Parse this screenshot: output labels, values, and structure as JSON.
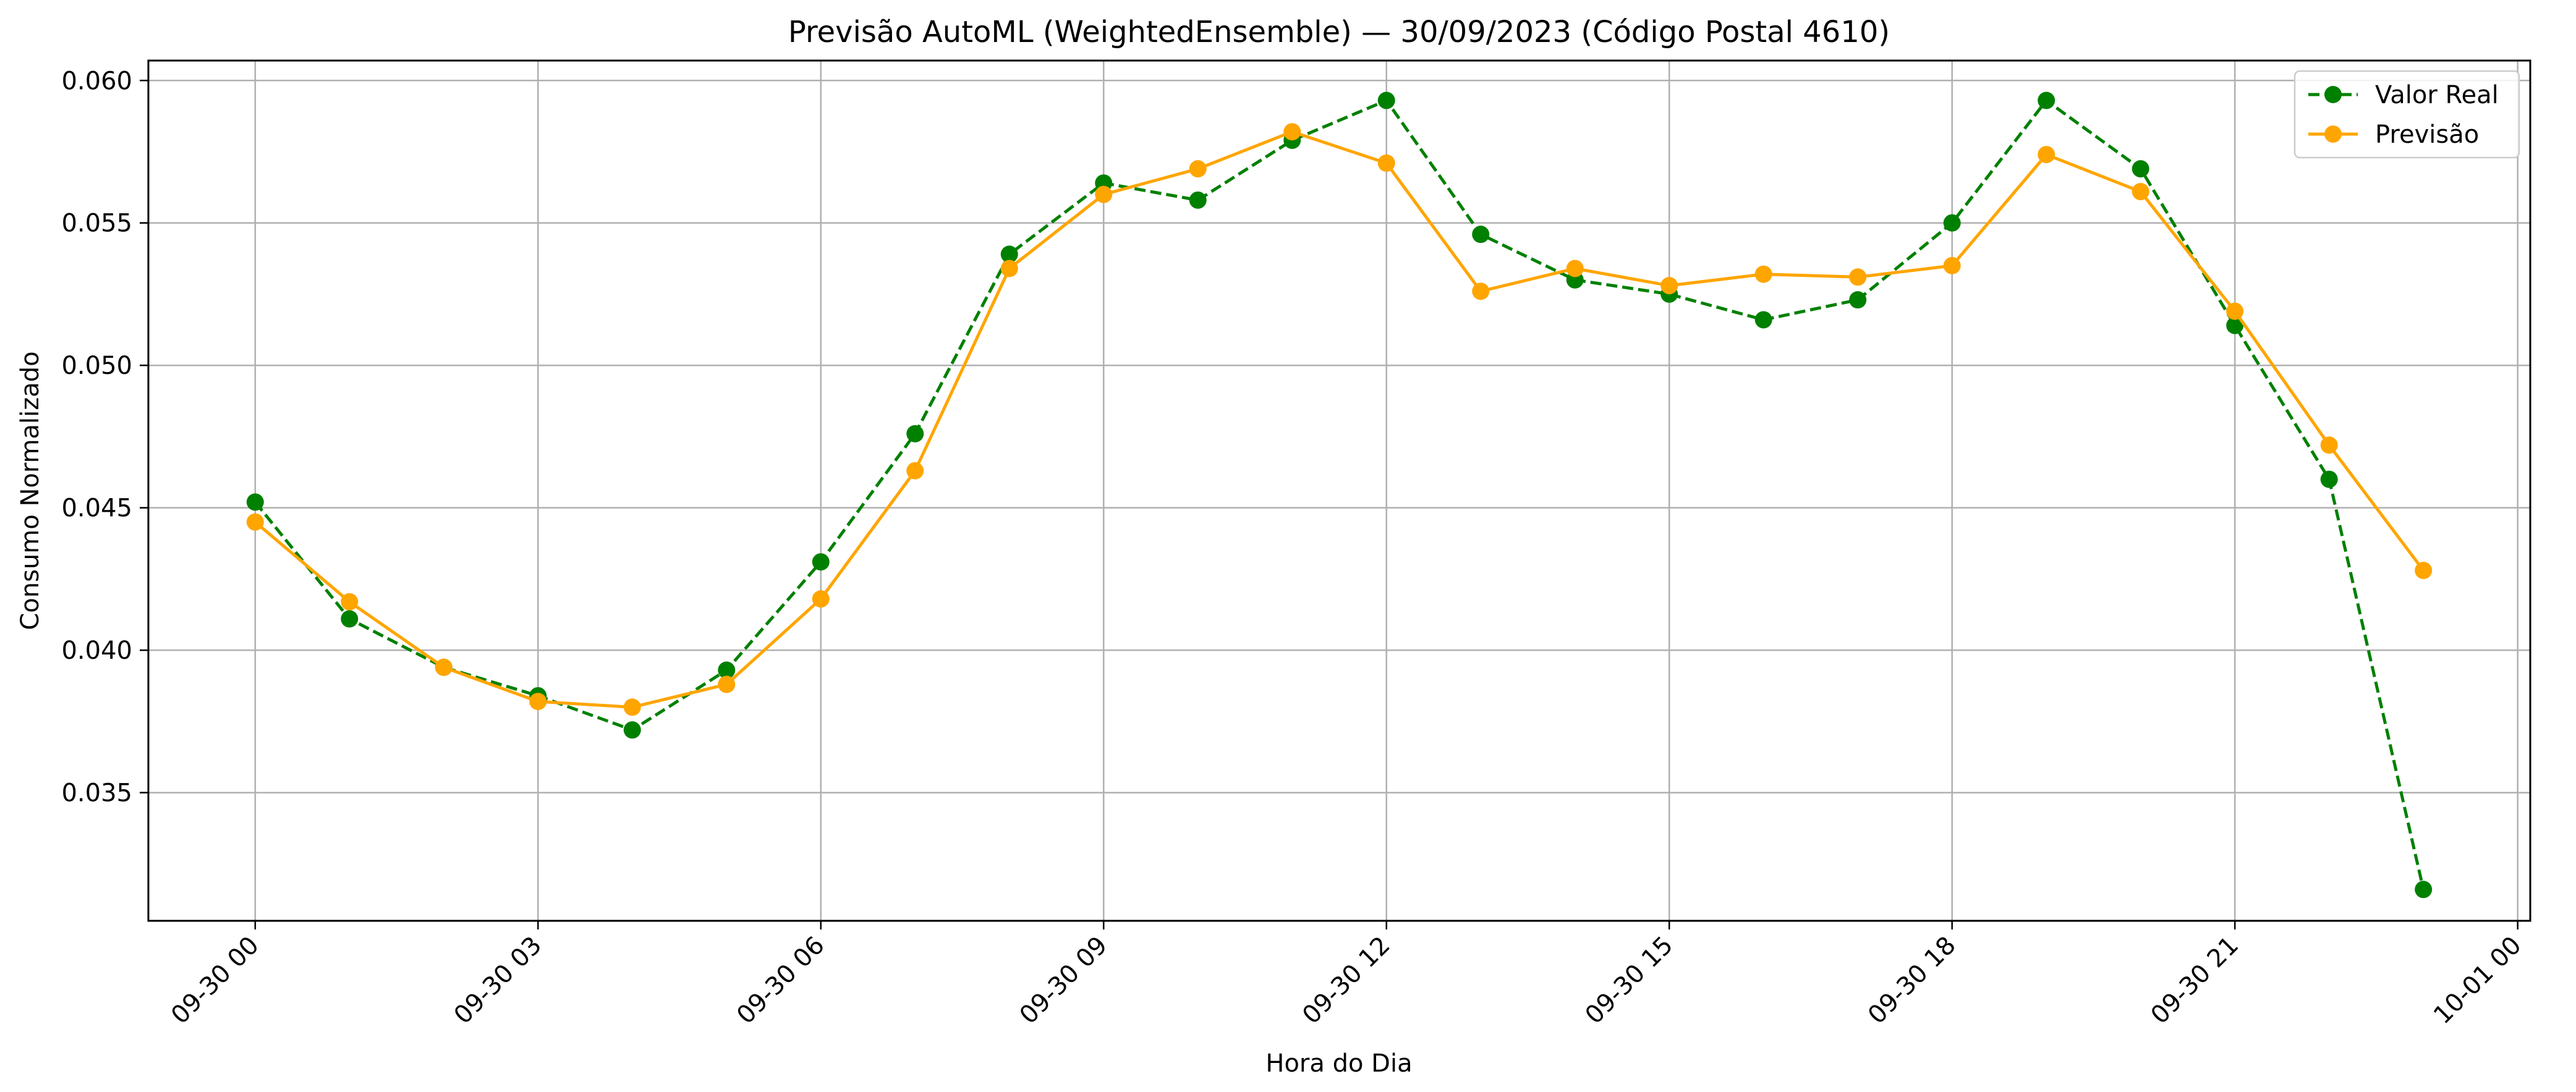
{
  "chart_data": {
    "type": "line",
    "title": "Previsão AutoML (WeightedEnsemble) — 30/09/2023 (Código Postal 4610)",
    "xlabel": "Hora do Dia",
    "ylabel": "Consumo Normalizado",
    "x_axis": {
      "type": "datetime",
      "tick_values": [
        "2023-09-30 00:00",
        "2023-09-30 03:00",
        "2023-09-30 06:00",
        "2023-09-30 09:00",
        "2023-09-30 12:00",
        "2023-09-30 15:00",
        "2023-09-30 18:00",
        "2023-09-30 21:00",
        "2023-10-01 00:00"
      ],
      "tick_labels": [
        "09-30 00",
        "09-30 03",
        "09-30 06",
        "09-30 09",
        "09-30 12",
        "09-30 15",
        "09-30 18",
        "09-30 21",
        "10-01 00"
      ],
      "range": [
        "2023-09-29 22:52",
        "2023-10-01 00:08"
      ]
    },
    "y_axis": {
      "ticks": [
        0.035,
        0.04,
        0.045,
        0.05,
        0.055,
        0.06
      ],
      "tick_labels": [
        "0.035",
        "0.040",
        "0.045",
        "0.050",
        "0.055",
        "0.060"
      ],
      "range": [
        0.0305,
        0.0607
      ]
    },
    "grid": true,
    "legend_position": "top-right",
    "x": [
      "2023-09-30 00:00",
      "2023-09-30 01:00",
      "2023-09-30 02:00",
      "2023-09-30 03:00",
      "2023-09-30 04:00",
      "2023-09-30 05:00",
      "2023-09-30 06:00",
      "2023-09-30 07:00",
      "2023-09-30 08:00",
      "2023-09-30 09:00",
      "2023-09-30 10:00",
      "2023-09-30 11:00",
      "2023-09-30 12:00",
      "2023-09-30 13:00",
      "2023-09-30 14:00",
      "2023-09-30 15:00",
      "2023-09-30 16:00",
      "2023-09-30 17:00",
      "2023-09-30 18:00",
      "2023-09-30 19:00",
      "2023-09-30 20:00",
      "2023-09-30 21:00",
      "2023-09-30 22:00",
      "2023-09-30 23:00"
    ],
    "series": [
      {
        "name": "Valor Real",
        "color": "#008000",
        "line_style": "dashed",
        "marker": "circle",
        "values": [
          0.0452,
          0.0411,
          0.0394,
          0.0384,
          0.0372,
          0.0393,
          0.0431,
          0.0476,
          0.0539,
          0.0564,
          0.0558,
          0.0579,
          0.0593,
          0.0546,
          0.053,
          0.0525,
          0.0516,
          0.0523,
          0.055,
          0.0593,
          0.0569,
          0.0514,
          0.046,
          0.0316
        ]
      },
      {
        "name": "Previsão",
        "color": "#FFA500",
        "line_style": "solid",
        "marker": "circle",
        "values": [
          0.0445,
          0.0417,
          0.0394,
          0.0382,
          0.038,
          0.0388,
          0.0418,
          0.0463,
          0.0534,
          0.056,
          0.0569,
          0.0582,
          0.0571,
          0.0526,
          0.0534,
          0.0528,
          0.0532,
          0.0531,
          0.0535,
          0.0574,
          0.0561,
          0.0519,
          0.0472,
          0.0428
        ]
      }
    ]
  }
}
